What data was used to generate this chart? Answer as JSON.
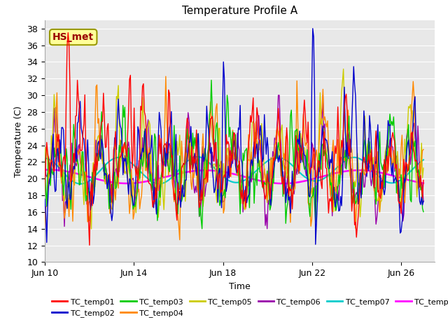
{
  "title": "Temperature Profile A",
  "xlabel": "Time",
  "ylabel": "Temperature (C)",
  "ylim": [
    10,
    39
  ],
  "yticks": [
    10,
    12,
    14,
    16,
    18,
    20,
    22,
    24,
    26,
    28,
    30,
    32,
    34,
    36,
    38
  ],
  "xtick_labels": [
    "Jun 10",
    "Jun 14",
    "Jun 18",
    "Jun 22",
    "Jun 26"
  ],
  "series_colors": {
    "TC_temp01": "#ff0000",
    "TC_temp02": "#0000cc",
    "TC_temp03": "#00cc00",
    "TC_temp04": "#ff8800",
    "TC_temp05": "#cccc00",
    "TC_temp06": "#9900aa",
    "TC_temp07": "#00cccc",
    "TC_temp08": "#ff00ff"
  },
  "legend_label": "HS_met",
  "legend_box_facecolor": "#ffff99",
  "legend_box_edgecolor": "#999900",
  "plot_bg_color": "#e8e8e8",
  "fig_bg_color": "#ffffff",
  "grid_color": "#ffffff",
  "title_fontsize": 11,
  "axis_fontsize": 9,
  "tick_fontsize": 9,
  "legend_fontsize": 8
}
